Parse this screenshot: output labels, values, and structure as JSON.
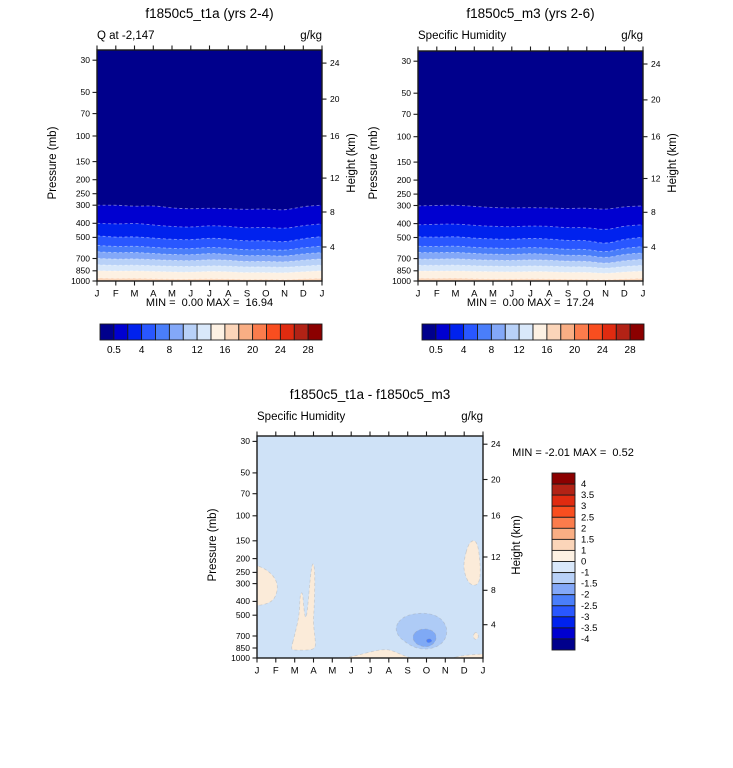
{
  "canvas": {
    "bg": "#ffffff"
  },
  "months": [
    "J",
    "F",
    "M",
    "A",
    "M",
    "J",
    "J",
    "A",
    "S",
    "O",
    "N",
    "D",
    "J"
  ],
  "pressure_ticks": [
    "30",
    "50",
    "70",
    "100",
    "150",
    "200",
    "250",
    "300",
    "400",
    "500",
    "700",
    "850",
    "1000"
  ],
  "height_ticks": [
    {
      "km": "24",
      "mb": 31.4
    },
    {
      "km": "20",
      "mb": 55.6
    },
    {
      "km": "16",
      "mb": 100
    },
    {
      "km": "12",
      "mb": 195
    },
    {
      "km": "8",
      "mb": 334
    },
    {
      "km": "4",
      "mb": 583
    }
  ],
  "palette16": [
    "#00008C",
    "#0000D0",
    "#0022EE",
    "#2957FF",
    "#4A7EFA",
    "#83A8F8",
    "#B8D1F8",
    "#D9E8FA",
    "#FDF1E3",
    "#FBD5B9",
    "#F9AE84",
    "#FB7C4C",
    "#F94E1F",
    "#E02B10",
    "#B22215",
    "#8B0000"
  ],
  "colorbar_labels": [
    "0.5",
    "4",
    "8",
    "12",
    "16",
    "20",
    "24",
    "28"
  ],
  "diff_colorbar_labels": [
    "4",
    "3.5",
    "3",
    "2.5",
    "2",
    "1.5",
    "1",
    "0",
    "-1",
    "-1.5",
    "-2",
    "-2.5",
    "-3",
    "-3.5",
    "-4"
  ],
  "chart_data": [
    {
      "type": "heatmap",
      "subtype": "filled_contour_pressure_vs_month",
      "title": "f1850c5_t1a (yrs 2-4)",
      "field_label": "Q at -2,147",
      "units": "g/kg",
      "y_left_label": "Pressure (mb)",
      "y_right_label": "Height (km)",
      "stats_text": "MIN =  0.00 MAX =  16.94",
      "min": 0.0,
      "max": 16.94,
      "x_tick_labels": [
        "J",
        "F",
        "M",
        "A",
        "M",
        "J",
        "J",
        "A",
        "S",
        "O",
        "N",
        "D",
        "J"
      ],
      "contour_levels": [
        0.5,
        2,
        4,
        6,
        8,
        10,
        12,
        14,
        16
      ],
      "contours_mb_by_month": [
        [
          300,
          299,
          306,
          302,
          314,
          318,
          314,
          317,
          321,
          317,
          326,
          306,
          300
        ],
        [
          400,
          406,
          399,
          411,
          421,
          426,
          414,
          420,
          431,
          426,
          436,
          414,
          404
        ],
        [
          488,
          500,
          494,
          506,
          516,
          521,
          504,
          515,
          531,
          526,
          541,
          509,
          494
        ],
        [
          568,
          580,
          574,
          586,
          596,
          601,
          584,
          595,
          611,
          606,
          616,
          589,
          574
        ],
        [
          628,
          640,
          634,
          646,
          656,
          661,
          644,
          655,
          671,
          666,
          676,
          649,
          637
        ],
        [
          698,
          708,
          702,
          712,
          721,
          726,
          711,
          719,
          736,
          731,
          741,
          717,
          704
        ],
        [
          773,
          782,
          777,
          785,
          792,
          796,
          784,
          790,
          801,
          798,
          806,
          789,
          777
        ],
        [
          848,
          856,
          851,
          858,
          866,
          869,
          857,
          863,
          876,
          872,
          881,
          861,
          851
        ],
        [
          953,
          960,
          957,
          962,
          969,
          971,
          961,
          966,
          976,
          972,
          979,
          964,
          957
        ]
      ]
    },
    {
      "type": "heatmap",
      "subtype": "filled_contour_pressure_vs_month",
      "title": "f1850c5_m3 (yrs 2-6)",
      "field_label": "Specific Humidity",
      "units": "g/kg",
      "y_left_label": "Pressure (mb)",
      "y_right_label": "Height (km)",
      "stats_text": "MIN =  0.00 MAX =  17.24",
      "min": 0.0,
      "max": 17.24,
      "x_tick_labels": [
        "J",
        "F",
        "M",
        "A",
        "M",
        "J",
        "J",
        "A",
        "S",
        "O",
        "N",
        "D",
        "J"
      ],
      "contour_levels": [
        0.5,
        2,
        4,
        6,
        8,
        10,
        12,
        14,
        16
      ],
      "contours_mb_by_month": [
        [
          302,
          300,
          298,
          304,
          310,
          312,
          310,
          312,
          315,
          312,
          320,
          305,
          302
        ],
        [
          408,
          405,
          402,
          412,
          418,
          422,
          415,
          418,
          428,
          425,
          445,
          415,
          408
        ],
        [
          495,
          498,
          492,
          505,
          512,
          515,
          505,
          512,
          525,
          522,
          555,
          512,
          498
        ],
        [
          575,
          578,
          572,
          585,
          592,
          595,
          585,
          592,
          605,
          602,
          635,
          592,
          578
        ],
        [
          635,
          638,
          632,
          645,
          652,
          655,
          645,
          652,
          665,
          662,
          695,
          652,
          640
        ],
        [
          705,
          706,
          700,
          712,
          718,
          722,
          712,
          718,
          730,
          728,
          760,
          722,
          708
        ],
        [
          778,
          780,
          775,
          785,
          790,
          793,
          785,
          790,
          798,
          796,
          820,
          792,
          780
        ],
        [
          852,
          854,
          850,
          858,
          862,
          865,
          858,
          862,
          872,
          870,
          888,
          864,
          854
        ],
        [
          956,
          958,
          955,
          962,
          966,
          968,
          962,
          965,
          973,
          971,
          982,
          966,
          958
        ]
      ]
    },
    {
      "type": "heatmap",
      "subtype": "filled_contour_anomaly",
      "title": "f1850c5_t1a - f1850c5_m3",
      "field_label": "Specific Humidity",
      "units": "g/kg",
      "y_left_label": "Pressure (mb)",
      "y_right_label": "Height (km)",
      "stats_text": "MIN = -2.01 MAX =  0.52",
      "min": -2.01,
      "max": 0.52,
      "x_tick_labels": [
        "J",
        "F",
        "M",
        "A",
        "M",
        "J",
        "J",
        "A",
        "S",
        "O",
        "N",
        "D",
        "J"
      ],
      "background_value_band": "-1 to 0",
      "background_color": "#CFE2F7",
      "features": [
        {
          "name": "pos-anom-jan-feb-upper",
          "band": "0 to 1",
          "color": "#FBEBD9",
          "points": [
            [
              -0.4,
              215
            ],
            [
              0.6,
              240
            ],
            [
              1.15,
              300
            ],
            [
              0.95,
              390
            ],
            [
              0.35,
              425
            ],
            [
              -0.4,
              430
            ]
          ]
        },
        {
          "name": "pos-anom-mar-apr-column",
          "band": "0 to 1",
          "color": "#FBEBD9",
          "points": [
            [
              1.8,
              865
            ],
            [
              2.0,
              690
            ],
            [
              2.25,
              500
            ],
            [
              2.28,
              360
            ],
            [
              2.42,
              340
            ],
            [
              2.5,
              470
            ],
            [
              2.6,
              540
            ],
            [
              2.7,
              430
            ],
            [
              2.82,
              280
            ],
            [
              2.95,
              208
            ],
            [
              3.08,
              240
            ],
            [
              3.05,
              420
            ],
            [
              2.98,
              560
            ],
            [
              3.08,
              720
            ],
            [
              3.12,
              850
            ],
            [
              2.8,
              878
            ],
            [
              2.3,
              882
            ],
            [
              1.95,
              878
            ]
          ]
        },
        {
          "name": "pos-anom-jun-aug-surface",
          "band": "0 to 1",
          "color": "#FBEBD9",
          "points": [
            [
              4.5,
              1010
            ],
            [
              5.3,
              960
            ],
            [
              6.3,
              885
            ],
            [
              6.9,
              868
            ],
            [
              7.3,
              900
            ],
            [
              7.9,
              975
            ],
            [
              8.3,
              1010
            ]
          ]
        },
        {
          "name": "pos-anom-dec-upper",
          "band": "0 to 1",
          "color": "#FBEBD9",
          "points": [
            [
              10.95,
              215
            ],
            [
              11.25,
              152
            ],
            [
              11.7,
              148
            ],
            [
              11.88,
              230
            ],
            [
              11.8,
              305
            ],
            [
              11.35,
              310
            ],
            [
              11.05,
              265
            ]
          ]
        },
        {
          "name": "pos-anom-dec-700mb",
          "band": "0 to 1",
          "color": "#FBEBD9",
          "points": [
            [
              11.45,
              705
            ],
            [
              11.62,
              648
            ],
            [
              11.8,
              705
            ],
            [
              11.62,
              752
            ]
          ]
        },
        {
          "name": "pos-anom-nov-jan-surface",
          "band": "0 to 1",
          "color": "#FBEBD9",
          "points": [
            [
              10.2,
              1010
            ],
            [
              10.9,
              962
            ],
            [
              11.8,
              938
            ],
            [
              12.4,
              940
            ],
            [
              12.4,
              1010
            ]
          ]
        },
        {
          "name": "neg-anom-sep-oct-outer",
          "band": "-1.5 to -1",
          "color": "#AECBF6",
          "points": [
            [
              7.35,
              600
            ],
            [
              7.7,
              520
            ],
            [
              8.3,
              487
            ],
            [
              9.1,
              483
            ],
            [
              9.75,
              520
            ],
            [
              10.1,
              610
            ],
            [
              10.05,
              720
            ],
            [
              9.7,
              820
            ],
            [
              9.1,
              872
            ],
            [
              8.45,
              855
            ],
            [
              7.9,
              780
            ],
            [
              7.45,
              690
            ]
          ]
        },
        {
          "name": "neg-anom-sep-oct-inner",
          "band": "-2 to -1.5",
          "color": "#7FA9F5",
          "points": [
            [
              8.25,
              700
            ],
            [
              8.5,
              638
            ],
            [
              9.0,
              618
            ],
            [
              9.45,
              655
            ],
            [
              9.55,
              745
            ],
            [
              9.2,
              835
            ],
            [
              8.7,
              830
            ],
            [
              8.35,
              775
            ]
          ]
        },
        {
          "name": "neg-anom-sep-oct-core",
          "band": "-2.5 to -2",
          "color": "#4A7EFA",
          "points": [
            [
              8.95,
              748
            ],
            [
              9.18,
              726
            ],
            [
              9.33,
              762
            ],
            [
              9.08,
              790
            ]
          ]
        }
      ]
    }
  ]
}
